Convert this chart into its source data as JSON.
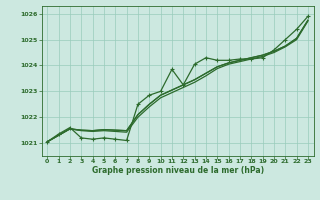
{
  "title": "Graphe pression niveau de la mer (hPa)",
  "background_color": "#cce8e0",
  "grid_color": "#99ccbb",
  "line_color": "#2d6b2d",
  "xlim": [
    -0.5,
    23.5
  ],
  "ylim": [
    1020.5,
    1026.3
  ],
  "xticks": [
    0,
    1,
    2,
    3,
    4,
    5,
    6,
    7,
    8,
    9,
    10,
    11,
    12,
    13,
    14,
    15,
    16,
    17,
    18,
    19,
    20,
    21,
    22,
    23
  ],
  "yticks": [
    1021,
    1022,
    1023,
    1024,
    1025,
    1026
  ],
  "series_zigzag": [
    1021.05,
    1021.35,
    1021.6,
    1021.2,
    1021.15,
    1021.2,
    1021.15,
    1021.1,
    1022.5,
    1022.85,
    1023.0,
    1023.85,
    1023.25,
    1024.05,
    1024.3,
    1024.2,
    1024.2,
    1024.25,
    1024.25,
    1024.3,
    1024.6,
    1025.0,
    1025.4,
    1025.9
  ],
  "series_smooth1": [
    1021.05,
    1021.3,
    1021.55,
    1021.5,
    1021.48,
    1021.52,
    1021.5,
    1021.48,
    1022.1,
    1022.5,
    1022.85,
    1023.05,
    1023.25,
    1023.45,
    1023.7,
    1023.95,
    1024.1,
    1024.2,
    1024.3,
    1024.4,
    1024.55,
    1024.75,
    1025.05,
    1025.75
  ],
  "series_smooth2": [
    1021.05,
    1021.3,
    1021.55,
    1021.5,
    1021.48,
    1021.52,
    1021.5,
    1021.48,
    1022.1,
    1022.5,
    1022.85,
    1023.05,
    1023.25,
    1023.45,
    1023.7,
    1023.95,
    1024.1,
    1024.2,
    1024.3,
    1024.4,
    1024.55,
    1024.75,
    1025.05,
    1025.75
  ],
  "series_smooth3": [
    1021.05,
    1021.3,
    1021.55,
    1021.48,
    1021.45,
    1021.48,
    1021.45,
    1021.42,
    1022.0,
    1022.4,
    1022.75,
    1022.95,
    1023.15,
    1023.35,
    1023.6,
    1023.88,
    1024.05,
    1024.15,
    1024.25,
    1024.35,
    1024.5,
    1024.72,
    1025.0,
    1025.72
  ]
}
